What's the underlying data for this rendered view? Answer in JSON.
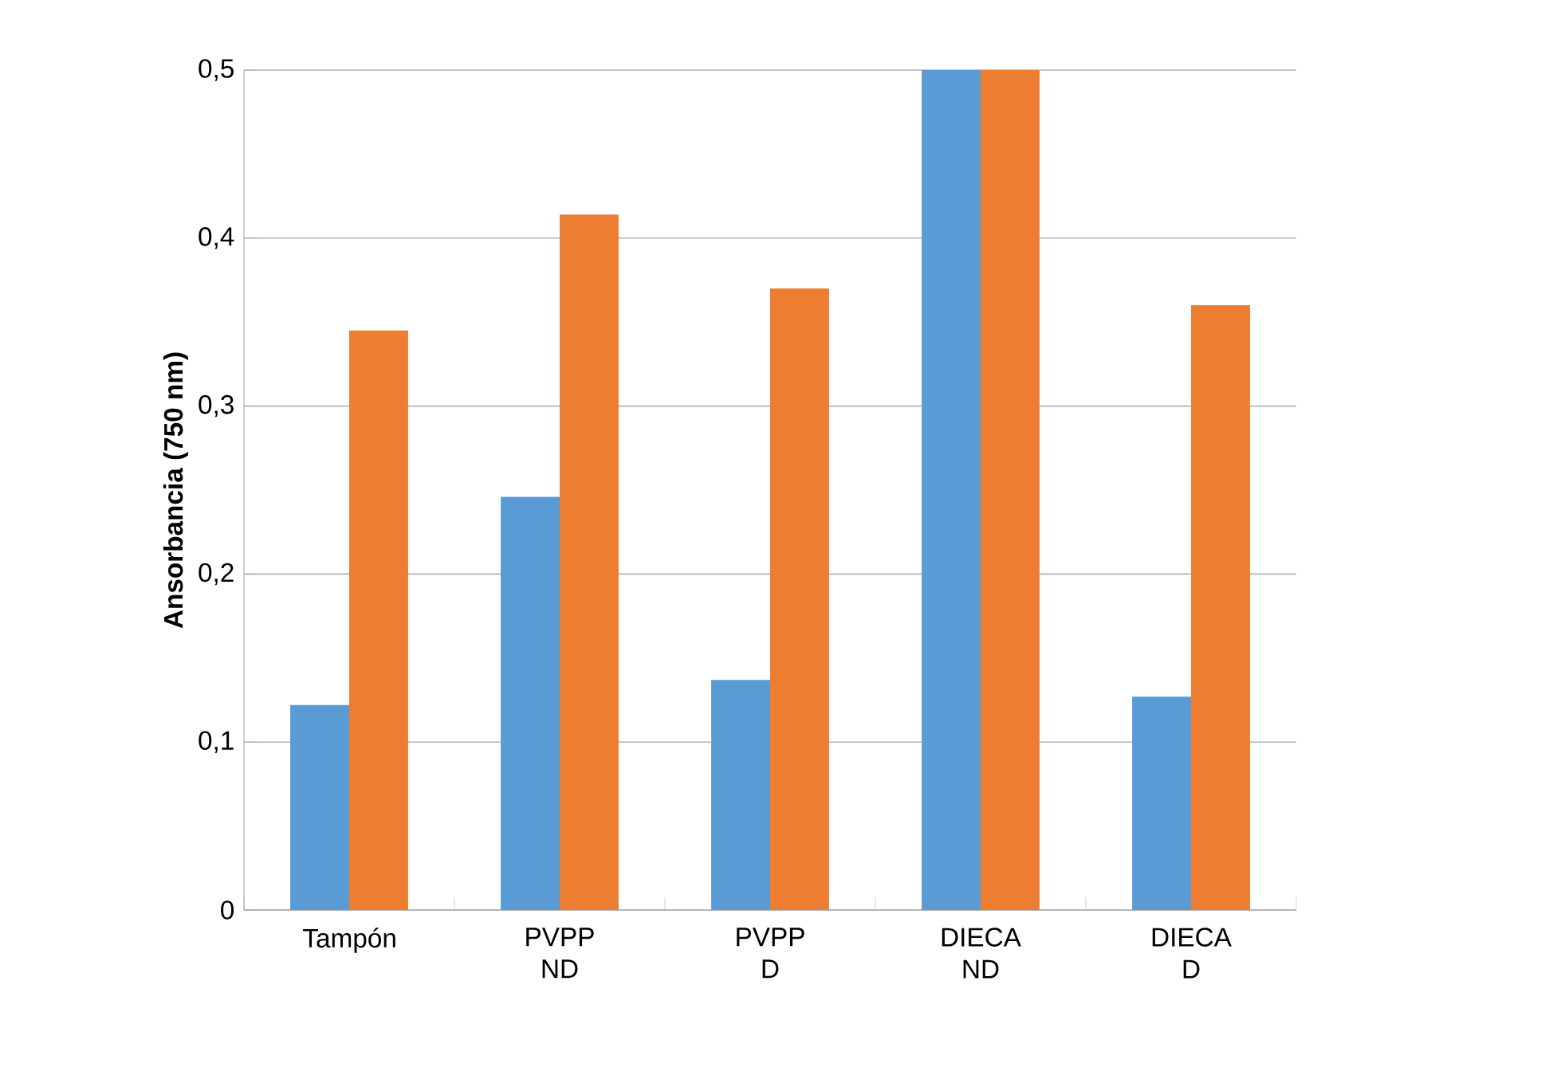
{
  "chart_data": {
    "type": "bar",
    "ylabel": "Ansorbancia (750 nm)",
    "categories": [
      "Tampón",
      "PVPP ND",
      "PVPP D",
      "DIECA ND",
      "DIECA D"
    ],
    "series": [
      {
        "color": "#5b9bd5",
        "values": [
          0.122,
          0.246,
          0.137,
          0.5,
          0.127
        ]
      },
      {
        "color": "#ed7d31",
        "values": [
          0.345,
          0.414,
          0.37,
          0.5,
          0.36
        ]
      }
    ],
    "ylim": [
      0,
      0.5
    ],
    "yticks": [
      {
        "value": 0,
        "label": "0"
      },
      {
        "value": 0.1,
        "label": "0,1"
      },
      {
        "value": 0.2,
        "label": "0,2"
      },
      {
        "value": 0.3,
        "label": "0,3"
      },
      {
        "value": 0.4,
        "label": "0,4"
      },
      {
        "value": 0.5,
        "label": "0,5"
      }
    ],
    "grid": "y"
  }
}
